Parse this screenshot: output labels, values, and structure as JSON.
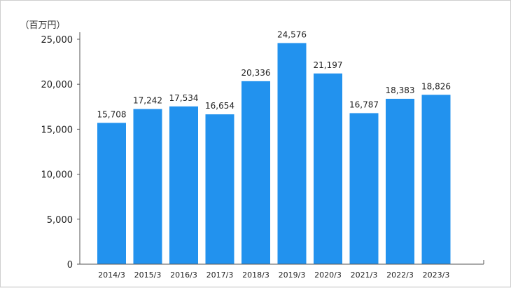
{
  "chart_data": {
    "type": "bar",
    "unit_label": "（百万円）",
    "categories": [
      "2014/3",
      "2015/3",
      "2016/3",
      "2017/3",
      "2018/3",
      "2019/3",
      "2020/3",
      "2021/3",
      "2022/3",
      "2023/3"
    ],
    "values": [
      15708,
      17242,
      17534,
      16654,
      20336,
      24576,
      21197,
      16787,
      18383,
      18826
    ],
    "value_labels": [
      "15,708",
      "17,242",
      "17,534",
      "16,654",
      "20,336",
      "24,576",
      "21,197",
      "16,787",
      "18,383",
      "18,826"
    ],
    "y_ticks": [
      0,
      5000,
      10000,
      15000,
      20000,
      25000
    ],
    "y_tick_labels": [
      "0",
      "5,000",
      "10,000",
      "15,000",
      "20,000",
      "25,000"
    ],
    "ylim": [
      0,
      25000
    ],
    "grid": false,
    "bar_color": "#2292ee"
  }
}
